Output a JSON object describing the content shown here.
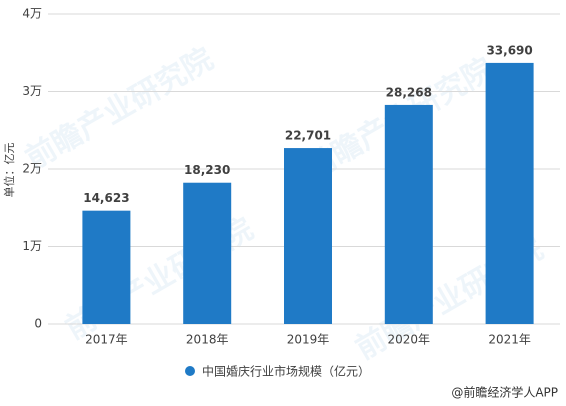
{
  "chart_data": {
    "type": "bar",
    "y_label": "单位：亿元",
    "categories": [
      "2017年",
      "2018年",
      "2019年",
      "2020年",
      "2021年"
    ],
    "series": [
      {
        "name": "中国婚庆行业市场规模（亿元）",
        "color": "#1f7ac6",
        "values": [
          14623,
          18230,
          22701,
          28268,
          33690
        ],
        "value_labels": [
          "14,623",
          "18,230",
          "22,701",
          "28,268",
          "33,690"
        ]
      }
    ],
    "ylim": [
      0,
      40000
    ],
    "yticks": [
      0,
      {
        "value": 10000,
        "label": "1万"
      },
      {
        "value": 20000,
        "label": "2万"
      },
      {
        "value": 30000,
        "label": "3万"
      },
      {
        "value": 40000,
        "label": "4万"
      }
    ],
    "grid": true,
    "legend": "bottom",
    "watermark": "前瞻产业研究院",
    "source": "@前瞻经济学人APP"
  }
}
